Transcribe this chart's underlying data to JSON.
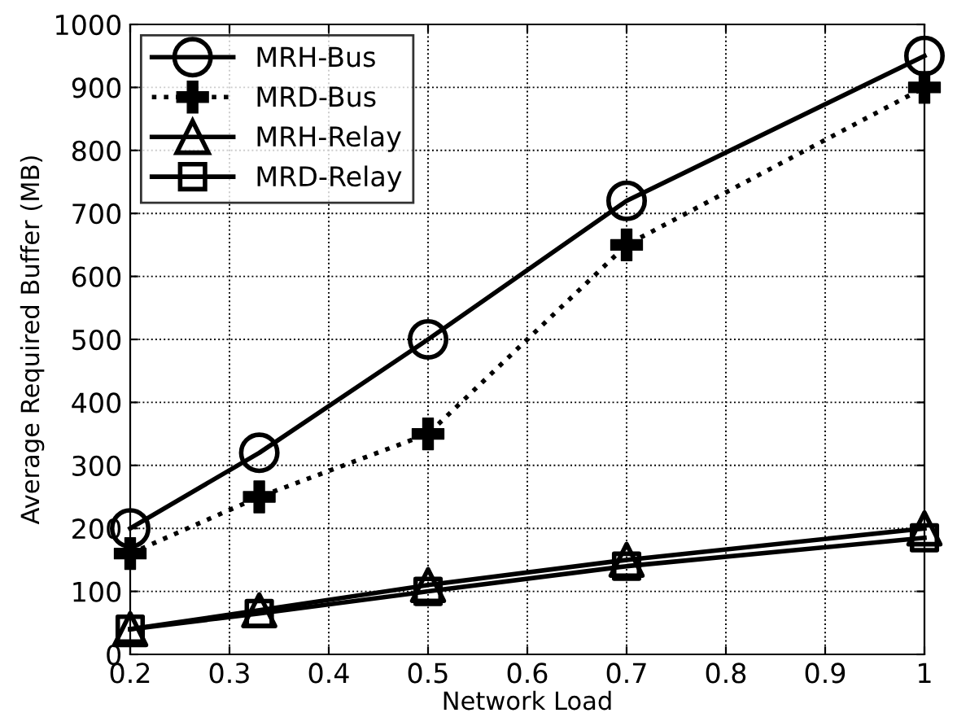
{
  "chart_data": {
    "type": "line",
    "xlabel": "Network Load",
    "ylabel": "Average Required Buffer (MB)",
    "x": [
      0.2,
      0.33,
      0.5,
      0.7,
      1
    ],
    "series": [
      {
        "name": "MRH-Bus",
        "color": "#000000",
        "marker": "circle",
        "line_style": "solid",
        "values": [
          200,
          320,
          500,
          720,
          950
        ]
      },
      {
        "name": "MRD-Bus",
        "color": "#000000",
        "marker": "cross",
        "line_style": "dotted",
        "values": [
          160,
          250,
          350,
          650,
          900
        ]
      },
      {
        "name": "MRH-Relay",
        "color": "#000000",
        "marker": "triangle",
        "line_style": "solid",
        "values": [
          40,
          70,
          110,
          150,
          200
        ]
      },
      {
        "name": "MRD-Relay",
        "color": "#000000",
        "marker": "square",
        "line_style": "solid",
        "values": [
          40,
          65,
          100,
          140,
          185
        ]
      }
    ],
    "xlim": [
      0.2,
      1
    ],
    "xticks": [
      0.2,
      0.3,
      0.4,
      0.5,
      0.6,
      0.7,
      0.8,
      0.9,
      1
    ],
    "ylim": [
      0,
      1000
    ],
    "yticks": [
      0,
      100,
      200,
      300,
      400,
      500,
      600,
      700,
      800,
      900,
      1000
    ],
    "grid": true,
    "legend": "top left"
  }
}
